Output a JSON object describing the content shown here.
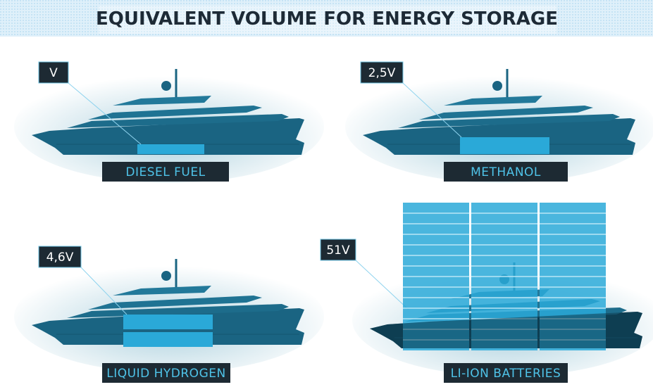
{
  "title": "EQUIVALENT VOLUME FOR ENERGY STORAGE",
  "panels": [
    {
      "volume": "V",
      "fuel": "DIESEL FUEL"
    },
    {
      "volume": "2,5V",
      "fuel": "METHANOL"
    },
    {
      "volume": "4,6V",
      "fuel": "LIQUID HYDROGEN"
    },
    {
      "volume": "51V",
      "fuel": "LI-ION BATTERIES"
    }
  ]
}
